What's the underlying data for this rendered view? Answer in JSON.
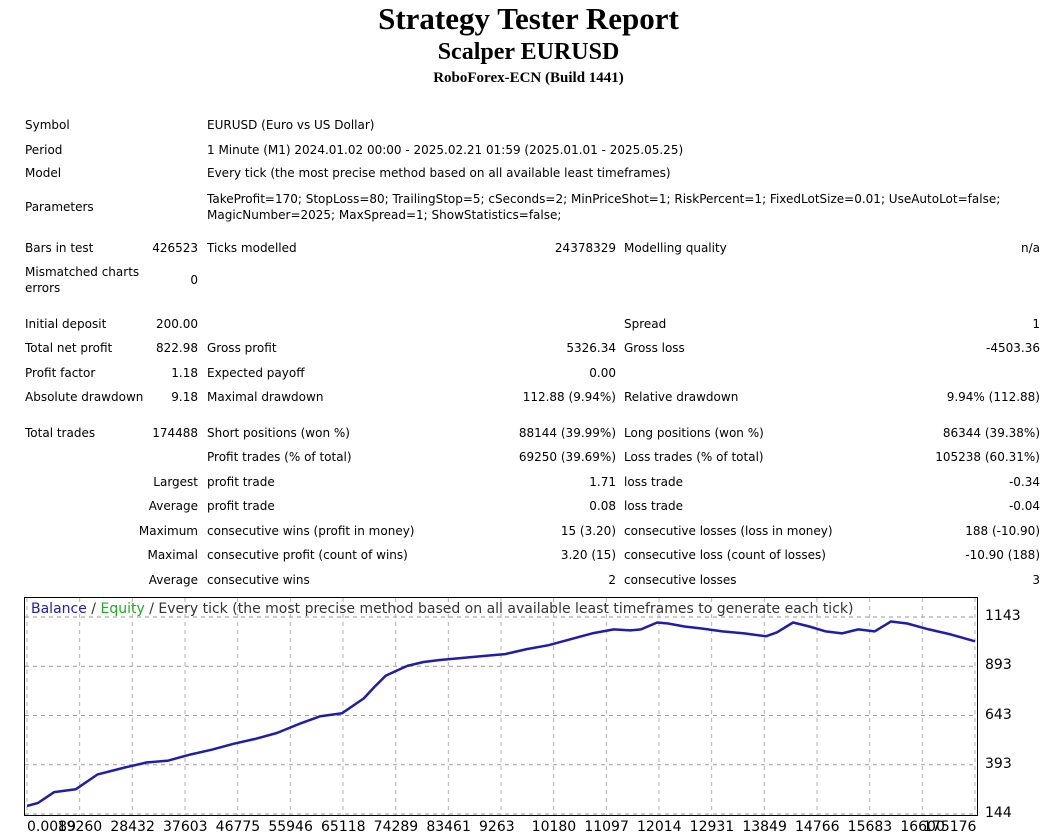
{
  "header": {
    "title": "Strategy Tester Report",
    "subtitle": "Scalper EURUSD",
    "server": "RoboForex-ECN (Build 1441)"
  },
  "settings": {
    "symbol_label": "Symbol",
    "symbol_value": "EURUSD (Euro vs US Dollar)",
    "period_label": "Period",
    "period_value": "1 Minute (M1) 2024.01.02 00:00 - 2025.02.21 01:59 (2025.01.01 - 2025.05.25)",
    "model_label": "Model",
    "model_value": "Every tick (the most precise method based on all available least timeframes)",
    "parameters_label": "Parameters",
    "parameters_line1": "TakeProfit=170; StopLoss=80; TrailingStop=5; cSeconds=2; MinPriceShot=1; RiskPercent=1; FixedLotSize=0.01; UseAutoLot=false;",
    "parameters_line2": "MagicNumber=2025; MaxSpread=1; ShowStatistics=false;"
  },
  "stats": {
    "bars_label": "Bars in test",
    "bars_value": "426523",
    "ticks_label": "Ticks modelled",
    "ticks_value": "24378329",
    "quality_label": "Modelling quality",
    "quality_value": "n/a",
    "mismatch_label1": "Mismatched charts",
    "mismatch_label2": "errors",
    "mismatch_value": "0",
    "deposit_label": "Initial deposit",
    "deposit_value": "200.00",
    "spread_label": "Spread",
    "spread_value": "1",
    "netprofit_label": "Total net profit",
    "netprofit_value": "822.98",
    "grossprofit_label": "Gross profit",
    "grossprofit_value": "5326.34",
    "grossloss_label": "Gross loss",
    "grossloss_value": "-4503.36",
    "pf_label": "Profit factor",
    "pf_value": "1.18",
    "payoff_label": "Expected payoff",
    "payoff_value": "0.00",
    "absdd_label": "Absolute drawdown",
    "absdd_value": "9.18",
    "maxdd_label": "Maximal drawdown",
    "maxdd_value": "112.88 (9.94%)",
    "reldd_label": "Relative drawdown",
    "reldd_value": "9.94% (112.88)",
    "trades_label": "Total trades",
    "trades_value": "174488",
    "short_label": "Short positions (won %)",
    "short_value": "88144 (39.99%)",
    "long_label": "Long positions (won %)",
    "long_value": "86344 (39.38%)",
    "profittrades_label": "Profit trades (% of total)",
    "profittrades_value": "69250 (39.69%)",
    "losstrades_label": "Loss trades (% of total)",
    "losstrades_value": "105238 (60.31%)",
    "largest_label": "Largest",
    "largest_profit_label": "profit trade",
    "largest_profit_value": "1.71",
    "largest_loss_label": "loss trade",
    "largest_loss_value": "-0.34",
    "average_label": "Average",
    "average_profit_label": "profit trade",
    "average_profit_value": "0.08",
    "average_loss_label": "loss trade",
    "average_loss_value": "-0.04",
    "maximum_label": "Maximum",
    "maxwins_label": "consecutive wins (profit in money)",
    "maxwins_value": "15 (3.20)",
    "maxlosses_label": "consecutive losses (loss in money)",
    "maxlosses_value": "188 (-10.90)",
    "maximal_label": "Maximal",
    "maxprofit_label": "consecutive profit (count of wins)",
    "maxprofit_value": "3.20 (15)",
    "maxloss_label": "consecutive loss (count of losses)",
    "maxloss_value": "-10.90 (188)",
    "avgcons_label": "Average",
    "avgwins_label": "consecutive wins",
    "avgwins_value": "2",
    "avglosses_label": "consecutive losses",
    "avglosses_value": "3"
  },
  "chart_data": {
    "type": "line",
    "legend_balance": "Balance",
    "legend_sep1": " / ",
    "legend_equity": "Equity",
    "legend_sep2": " / ",
    "legend_rest": "Every tick (the most precise method based on all available least timeframes to generate each tick)",
    "balance_color": "#1e1ea8",
    "equity_color": "#22aa22",
    "grid": true,
    "ylim": [
      144,
      1143
    ],
    "yticks": [
      "1143",
      "893",
      "643",
      "393",
      "144"
    ],
    "xticks": [
      "0.0089",
      "19260",
      "28432",
      "37603",
      "46775",
      "55946",
      "65118",
      "74289",
      "83461",
      "9263",
      "10180",
      "11097",
      "12014",
      "12931",
      "13849",
      "14766",
      "15683",
      "16600",
      "175176"
    ],
    "x": [
      0,
      2000,
      5000,
      9000,
      13000,
      18000,
      22000,
      26000,
      30000,
      34000,
      38000,
      42000,
      46000,
      50000,
      54000,
      58000,
      62000,
      64000,
      66000,
      68000,
      70000,
      73000,
      76000,
      80000,
      84000,
      88000,
      92000,
      96000,
      100000,
      104000,
      108000,
      111000,
      113000,
      116000,
      118000,
      121000,
      124000,
      128000,
      132000,
      136000,
      138000,
      141000,
      144000,
      147000,
      150000,
      153000,
      156000,
      159000,
      162000,
      166000,
      170000,
      174488
    ],
    "values": [
      185,
      200,
      255,
      270,
      345,
      380,
      405,
      415,
      445,
      470,
      500,
      525,
      555,
      600,
      640,
      655,
      730,
      790,
      845,
      870,
      895,
      915,
      925,
      935,
      945,
      955,
      980,
      1000,
      1030,
      1060,
      1080,
      1075,
      1080,
      1115,
      1110,
      1095,
      1085,
      1070,
      1060,
      1045,
      1065,
      1115,
      1095,
      1070,
      1060,
      1080,
      1070,
      1120,
      1110,
      1080,
      1055,
      1020
    ]
  }
}
